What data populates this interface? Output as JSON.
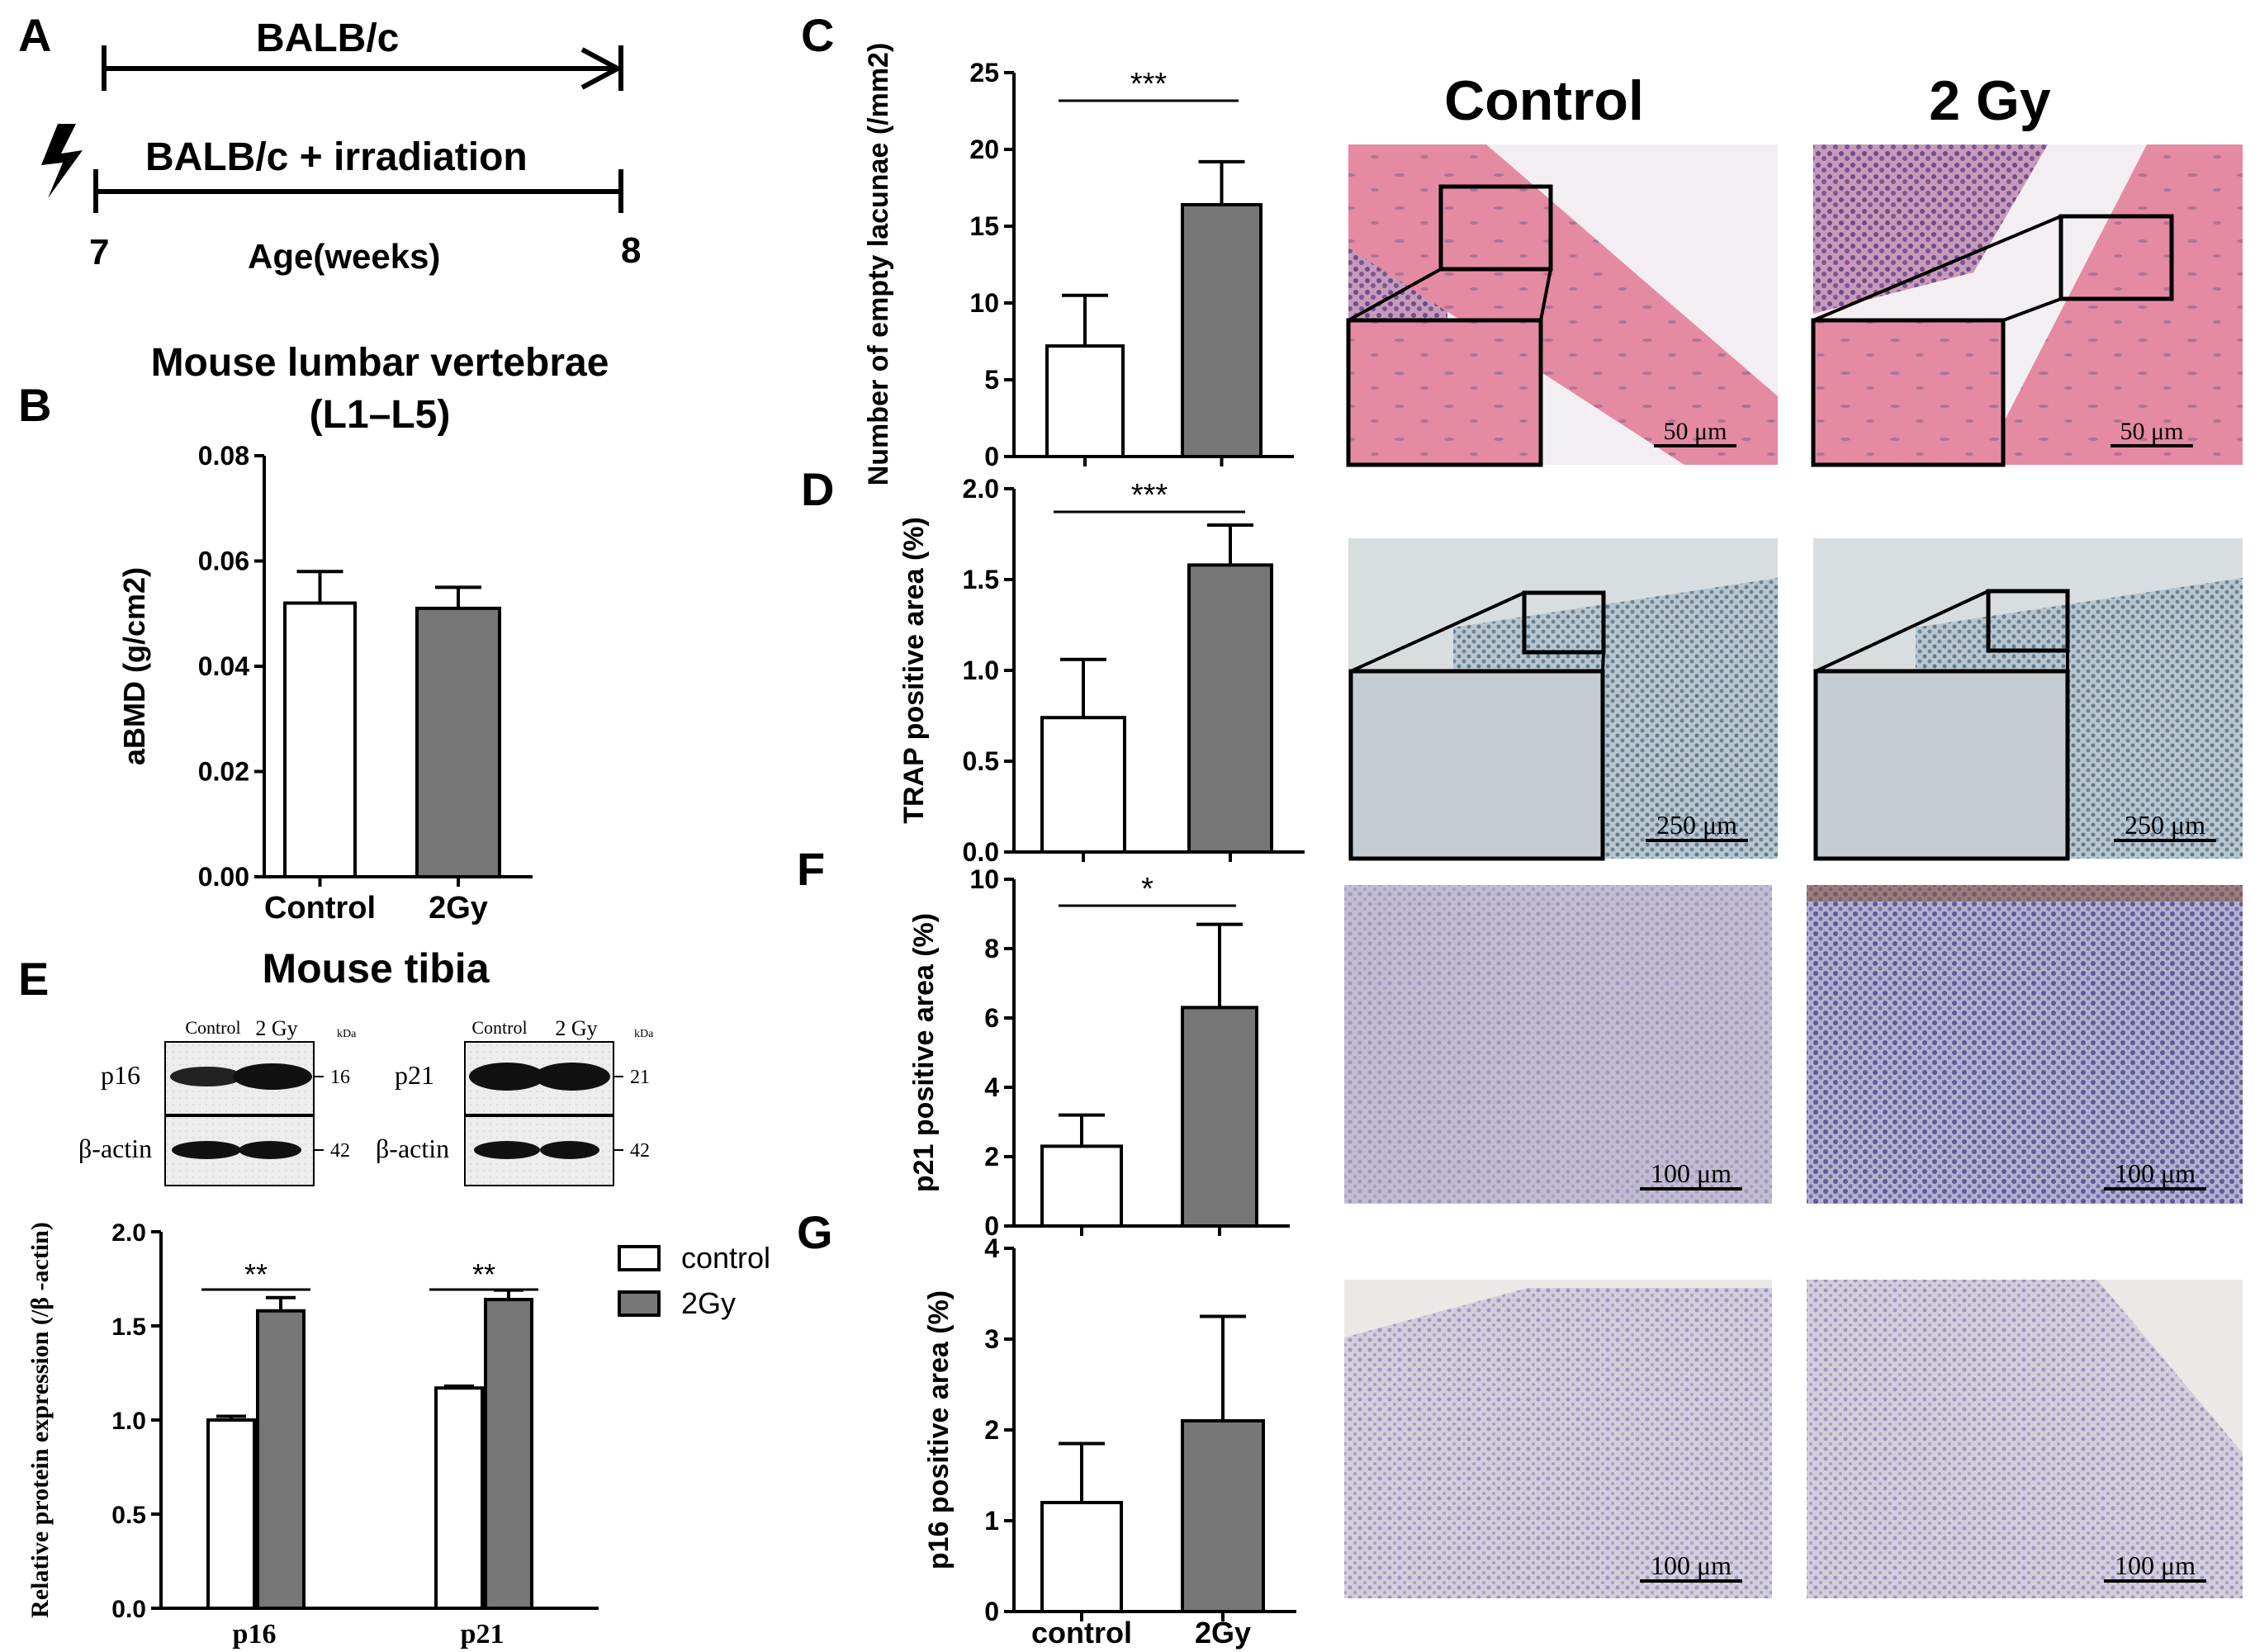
{
  "colors": {
    "gray_bar": "#777777",
    "white_bar": "#ffffff",
    "he_pink": "#e2849e",
    "trap_bg": "#c9d3dc",
    "ihc_blue": "#8a8fbf",
    "ihc_light": "#c8c3d8"
  },
  "panel_A": {
    "letter": "A",
    "row1_label": "BALB/c",
    "row2_label": "BALB/c + irradiation",
    "start": "7",
    "end": "8",
    "axis_label": "Age(weeks)",
    "bolt_icon": "lightning-bolt-icon"
  },
  "panel_B": {
    "letter": "B",
    "title_line1": "Mouse lumbar vertebrae",
    "title_line2": "(L1–L5)"
  },
  "panel_C": {
    "letter": "C",
    "col_control": "Control",
    "col_2gy": "2 Gy",
    "scale_control": "50 μm",
    "scale_2gy": "50 μm"
  },
  "panel_D": {
    "letter": "D",
    "scale_control": "250 μm",
    "scale_2gy": "250 μm"
  },
  "panel_E": {
    "letter": "E",
    "title": "Mouse tibia",
    "blot_left": {
      "lane1": "Control",
      "lane2": "2 Gy",
      "kda": "kDa",
      "row1_label": "p16",
      "row1_kda": "16",
      "row2_label": "β-actin",
      "row2_kda": "42"
    },
    "blot_right": {
      "lane1": "Control",
      "lane2": "2 Gy",
      "kda": "kDa",
      "row1_label": "p21",
      "row1_kda": "21",
      "row2_label": "β-actin",
      "row2_kda": "42"
    }
  },
  "panel_F": {
    "letter": "F",
    "scale_control": "100 μm",
    "scale_2gy": "100 μm"
  },
  "panel_G": {
    "letter": "G",
    "scale_control": "100 μm",
    "scale_2gy": "100 μm"
  },
  "chart_data": [
    {
      "id": "B",
      "type": "bar",
      "categories": [
        "Control",
        "2Gy"
      ],
      "values": [
        0.052,
        0.051
      ],
      "errors": [
        0.006,
        0.004
      ],
      "ylabel": "aBMD (g/cm2)",
      "ylim": [
        0,
        0.08
      ],
      "yticks": [
        "0.00",
        "0.02",
        "0.04",
        "0.06",
        "0.08"
      ],
      "significance": []
    },
    {
      "id": "C",
      "type": "bar",
      "categories": [
        "",
        ""
      ],
      "values": [
        7.2,
        16.4
      ],
      "errors": [
        3.3,
        2.8
      ],
      "ylabel": "Number of empty lacunae (/mm2)",
      "ylim": [
        0,
        25
      ],
      "yticks": [
        "0",
        "5",
        "10",
        "15",
        "20",
        "25"
      ],
      "significance": [
        "***"
      ]
    },
    {
      "id": "D",
      "type": "bar",
      "categories": [
        "",
        ""
      ],
      "values": [
        0.74,
        1.58
      ],
      "errors": [
        0.32,
        0.22
      ],
      "ylabel": "TRAP positive area (%)",
      "ylim": [
        0,
        2.0
      ],
      "yticks": [
        "0.0",
        "0.5",
        "1.0",
        "1.5",
        "2.0"
      ],
      "significance": [
        "***"
      ]
    },
    {
      "id": "F",
      "type": "bar",
      "categories": [
        "",
        ""
      ],
      "values": [
        2.3,
        6.3
      ],
      "errors": [
        0.9,
        2.4
      ],
      "ylabel": "p21 positive area (%)",
      "ylim": [
        0,
        10
      ],
      "yticks": [
        "0",
        "2",
        "4",
        "6",
        "8",
        "10"
      ],
      "significance": [
        "*"
      ]
    },
    {
      "id": "G",
      "type": "bar",
      "categories": [
        "control",
        "2Gy"
      ],
      "values": [
        1.2,
        2.1
      ],
      "errors": [
        0.65,
        1.15
      ],
      "ylabel": "p16 positive area (%)",
      "ylim": [
        0,
        4
      ],
      "yticks": [
        "0",
        "1",
        "2",
        "3",
        "4"
      ],
      "significance": []
    },
    {
      "id": "E",
      "type": "bar",
      "categories": [
        "p16",
        "p21"
      ],
      "series": [
        {
          "name": "control",
          "values": [
            1.0,
            1.17
          ],
          "errors": [
            0.02,
            0.01
          ]
        },
        {
          "name": "2Gy",
          "values": [
            1.58,
            1.64
          ],
          "errors": [
            0.07,
            0.05
          ]
        }
      ],
      "ylabel": "Relative protein expression (/β -actin)",
      "ylim": [
        0,
        2.0
      ],
      "yticks": [
        "0.0",
        "0.5",
        "1.0",
        "1.5",
        "2.0"
      ],
      "significance": [
        "**",
        "**"
      ],
      "legend": "top-right"
    }
  ]
}
